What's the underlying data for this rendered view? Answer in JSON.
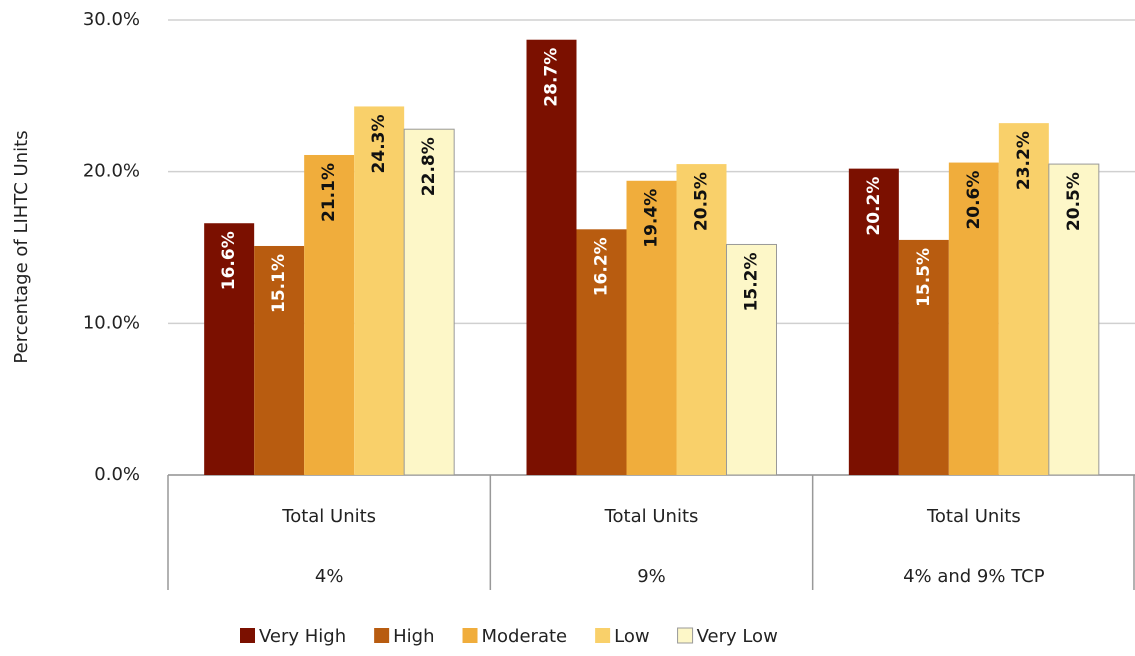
{
  "chart_data": {
    "type": "bar",
    "y_label": "Percentage of LIHTC Units",
    "categories": [
      "4%",
      "9%",
      "4% and 9% TCP"
    ],
    "subcategories": [
      "Total Units",
      "Total Units",
      "Total Units"
    ],
    "series": [
      {
        "name": "Very High",
        "color": "#7b1000",
        "values": [
          16.6,
          28.7,
          20.2
        ],
        "value_labels": [
          "16.6%",
          "28.7%",
          "20.2%"
        ]
      },
      {
        "name": "High",
        "color": "#b85c10",
        "values": [
          15.1,
          16.2,
          15.5
        ],
        "value_labels": [
          "15.1%",
          "16.2%",
          "15.5%"
        ]
      },
      {
        "name": "Moderate",
        "color": "#f0ad3c",
        "values": [
          21.1,
          19.4,
          20.6
        ],
        "value_labels": [
          "21.1%",
          "19.4%",
          "20.6%"
        ]
      },
      {
        "name": "Low",
        "color": "#f9d06a",
        "values": [
          24.3,
          20.5,
          23.2
        ],
        "value_labels": [
          "24.3%",
          "20.5%",
          "23.2%"
        ]
      },
      {
        "name": "Very Low",
        "color": "#fdf7c8",
        "values": [
          22.8,
          15.2,
          20.5
        ],
        "value_labels": [
          "22.8%",
          "15.2%",
          "20.5%"
        ]
      }
    ],
    "ylim": [
      0,
      30
    ],
    "yticks": [
      {
        "value": 0,
        "label": "0.0%"
      },
      {
        "value": 10,
        "label": "10.0%"
      },
      {
        "value": 20,
        "label": "20.0%"
      },
      {
        "value": 30,
        "label": "30.0%"
      }
    ],
    "grid": true
  }
}
